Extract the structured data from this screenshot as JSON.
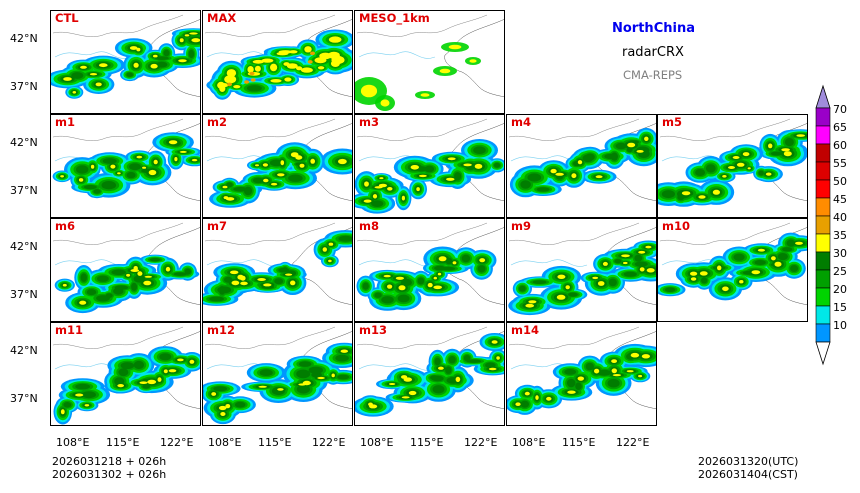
{
  "header": {
    "region": "NorthChina",
    "product": "radarCRX",
    "system": "CMA-REPS"
  },
  "panels": [
    {
      "label": "CTL"
    },
    {
      "label": "MAX"
    },
    {
      "label": "MESO_1km"
    },
    {
      "label": "m1"
    },
    {
      "label": "m2"
    },
    {
      "label": "m3"
    },
    {
      "label": "m4"
    },
    {
      "label": "m5"
    },
    {
      "label": "m6"
    },
    {
      "label": "m7"
    },
    {
      "label": "m8"
    },
    {
      "label": "m9"
    },
    {
      "label": "m10"
    },
    {
      "label": "m11"
    },
    {
      "label": "m12"
    },
    {
      "label": "m13"
    },
    {
      "label": "m14"
    }
  ],
  "axes": {
    "lat_ticks": [
      "42°N",
      "37°N"
    ],
    "lon_ticks": [
      "108°E",
      "115°E",
      "122°E"
    ]
  },
  "colorbar": {
    "levels": [
      "70",
      "65",
      "60",
      "55",
      "50",
      "45",
      "40",
      "35",
      "30",
      "25",
      "20",
      "15",
      "10"
    ],
    "colors": [
      "#9a00c8",
      "#ff00ff",
      "#c00000",
      "#dd0000",
      "#ff0000",
      "#ff8c00",
      "#e8a000",
      "#ffff00",
      "#007d00",
      "#00a000",
      "#00d400",
      "#00e8e8",
      "#0096ff"
    ],
    "top_arrow_color": "#a08cdc",
    "bottom_arrow_color": "#ffffff"
  },
  "footer": {
    "init_utc": "2026031218  +  026h",
    "init_cst": "2026031302  +  026h",
    "valid_utc": "2026031320(UTC)",
    "valid_cst": "2026031404(CST)"
  }
}
